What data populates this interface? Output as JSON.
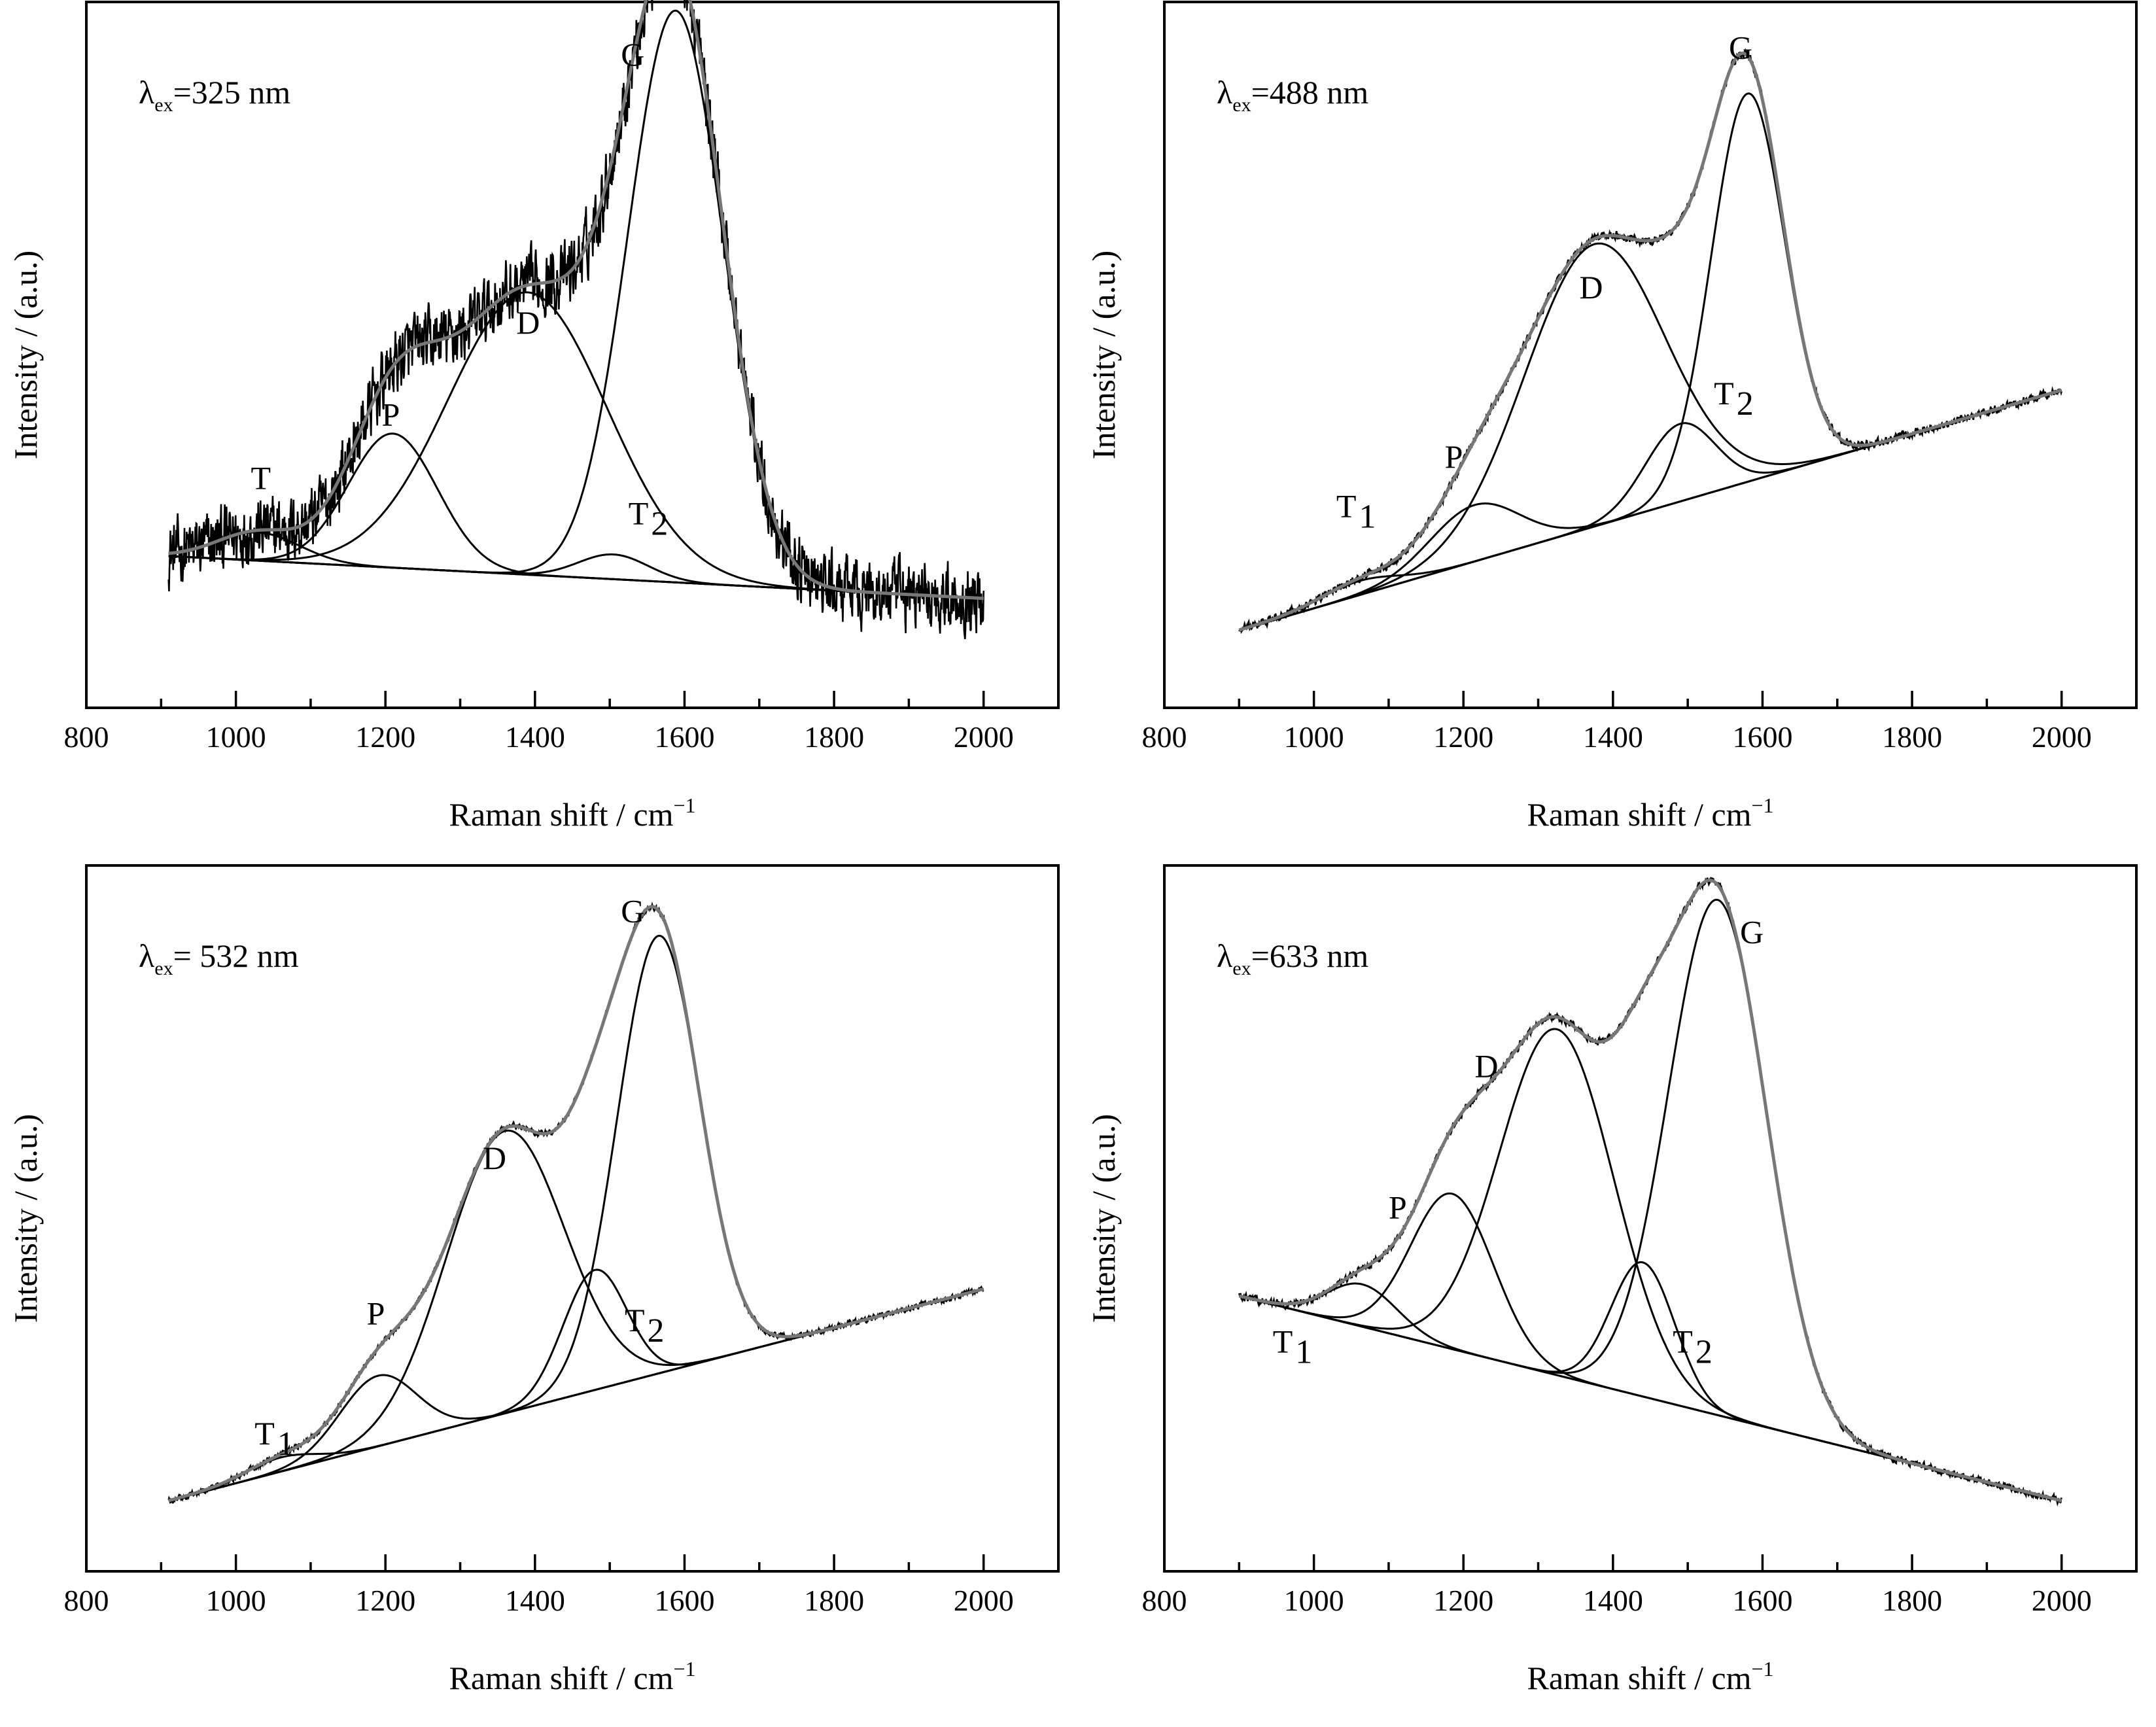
{
  "chart_data": [
    {
      "type": "line",
      "panel": "top-left",
      "title": "",
      "lambda": {
        "symbol": "λ",
        "sub": "ex",
        "text": "=325 nm"
      },
      "xlabel": "Raman shift / cm",
      "xlabel_sup": "−1",
      "ylabel": "Intensity / (a.u.)",
      "xlim": [
        800,
        2100
      ],
      "ylim": [
        0,
        1
      ],
      "x_ticks": [
        800,
        1000,
        1200,
        1400,
        1600,
        1800,
        2000
      ],
      "x_tick_labels": [
        "800",
        "1000",
        "1200",
        "1400",
        "1600",
        "1800",
        "2000"
      ],
      "x_range": [
        910,
        2000
      ],
      "noise": 0.07,
      "baseline": {
        "x": [
          910,
          2000
        ],
        "y": [
          0.215,
          0.155
        ]
      },
      "peaks": [
        {
          "name": "T",
          "label": "T",
          "sub": "",
          "center": 1030,
          "amplitude": 0.04,
          "fwhm": 130
        },
        {
          "name": "P",
          "label": "P",
          "sub": "",
          "center": 1210,
          "amplitude": 0.19,
          "fwhm": 140
        },
        {
          "name": "D",
          "label": "D",
          "sub": "",
          "center": 1390,
          "amplitude": 0.4,
          "fwhm": 250
        },
        {
          "name": "T2",
          "label": "T",
          "sub": "2",
          "center": 1505,
          "amplitude": 0.035,
          "fwhm": 110
        },
        {
          "name": "G",
          "label": "G",
          "sub": "",
          "center": 1588,
          "amplitude": 0.81,
          "fwhm": 150
        }
      ],
      "peak_label_positions": {
        "T": [
          1020,
          0.31
        ],
        "P": [
          1195,
          0.4
        ],
        "D": [
          1375,
          0.53
        ],
        "T2": [
          1525,
          0.26
        ],
        "G": [
          1515,
          0.91
        ]
      }
    },
    {
      "type": "line",
      "panel": "top-right",
      "title": "",
      "lambda": {
        "symbol": "λ",
        "sub": "ex",
        "text": "=488 nm"
      },
      "xlabel": "Raman shift / cm",
      "xlabel_sup": "−1",
      "ylabel": "Intensity / (a.u.)",
      "xlim": [
        800,
        2100
      ],
      "ylim": [
        0,
        1
      ],
      "x_ticks": [
        800,
        1000,
        1200,
        1400,
        1600,
        1800,
        2000
      ],
      "x_tick_labels": [
        "800",
        "1000",
        "1200",
        "1400",
        "1600",
        "1800",
        "2000"
      ],
      "x_range": [
        900,
        2000
      ],
      "noise": 0.009,
      "baseline": {
        "x": [
          900,
          2000
        ],
        "y": [
          0.11,
          0.45
        ]
      },
      "peaks": [
        {
          "name": "T1",
          "label": "T",
          "sub": "1",
          "center": 1060,
          "amplitude": 0.02,
          "fwhm": 120
        },
        {
          "name": "P",
          "label": "P",
          "sub": "",
          "center": 1215,
          "amplitude": 0.08,
          "fwhm": 140
        },
        {
          "name": "D",
          "label": "D",
          "sub": "",
          "center": 1375,
          "amplitude": 0.4,
          "fwhm": 220
        },
        {
          "name": "T2",
          "label": "T",
          "sub": "2",
          "center": 1490,
          "amplitude": 0.11,
          "fwhm": 110
        },
        {
          "name": "G",
          "label": "G",
          "sub": "",
          "center": 1580,
          "amplitude": 0.55,
          "fwhm": 115
        }
      ],
      "peak_label_positions": {
        "T1": [
          1030,
          0.27
        ],
        "P": [
          1175,
          0.34
        ],
        "D": [
          1355,
          0.58
        ],
        "T2": [
          1535,
          0.43
        ],
        "G": [
          1555,
          0.92
        ]
      }
    },
    {
      "type": "line",
      "panel": "bottom-left",
      "title": "",
      "lambda": {
        "symbol": "λ",
        "sub": "ex",
        "text": "= 532 nm"
      },
      "xlabel": "Raman shift / cm",
      "xlabel_sup": "−1",
      "ylabel": "Intensity / (a.u.)",
      "xlim": [
        800,
        2100
      ],
      "ylim": [
        0,
        1
      ],
      "x_ticks": [
        800,
        1000,
        1200,
        1400,
        1600,
        1800,
        2000
      ],
      "x_tick_labels": [
        "800",
        "1000",
        "1200",
        "1400",
        "1600",
        "1800",
        "2000"
      ],
      "x_range": [
        910,
        2000
      ],
      "noise": 0.006,
      "baseline": {
        "x": [
          910,
          2000
        ],
        "y": [
          0.1,
          0.4
        ]
      },
      "peaks": [
        {
          "name": "T1",
          "label": "T",
          "sub": "1",
          "center": 1060,
          "amplitude": 0.02,
          "fwhm": 110
        },
        {
          "name": "P",
          "label": "P",
          "sub": "",
          "center": 1190,
          "amplitude": 0.1,
          "fwhm": 120
        },
        {
          "name": "D",
          "label": "D",
          "sub": "",
          "center": 1360,
          "amplitude": 0.4,
          "fwhm": 185
        },
        {
          "name": "T2",
          "label": "T",
          "sub": "2",
          "center": 1480,
          "amplitude": 0.17,
          "fwhm": 100
        },
        {
          "name": "G",
          "label": "G",
          "sub": "",
          "center": 1565,
          "amplitude": 0.62,
          "fwhm": 130
        }
      ],
      "peak_label_positions": {
        "T1": [
          1025,
          0.18
        ],
        "P": [
          1175,
          0.35
        ],
        "D": [
          1330,
          0.57
        ],
        "T2": [
          1520,
          0.34
        ],
        "G": [
          1515,
          0.92
        ]
      }
    },
    {
      "type": "line",
      "panel": "bottom-right",
      "title": "",
      "lambda": {
        "symbol": "λ",
        "sub": "ex",
        "text": "=633 nm"
      },
      "xlabel": "Raman shift / cm",
      "xlabel_sup": "−1",
      "ylabel": "Intensity  / (a.u.)",
      "xlim": [
        800,
        2100
      ],
      "ylim": [
        0,
        1
      ],
      "x_ticks": [
        800,
        1000,
        1200,
        1400,
        1600,
        1800,
        2000
      ],
      "x_tick_labels": [
        "800",
        "1000",
        "1200",
        "1400",
        "1600",
        "1800",
        "2000"
      ],
      "x_range": [
        900,
        2000
      ],
      "noise": 0.008,
      "baseline": {
        "x": [
          900,
          2000
        ],
        "y": [
          0.39,
          0.1
        ]
      },
      "peaks": [
        {
          "name": "T1",
          "label": "T",
          "sub": "1",
          "center": 1065,
          "amplitude": 0.06,
          "fwhm": 110
        },
        {
          "name": "P",
          "label": "P",
          "sub": "",
          "center": 1185,
          "amplitude": 0.22,
          "fwhm": 130
        },
        {
          "name": "D",
          "label": "D",
          "sub": "",
          "center": 1325,
          "amplitude": 0.49,
          "fwhm": 180
        },
        {
          "name": "T2",
          "label": "T",
          "sub": "2",
          "center": 1440,
          "amplitude": 0.19,
          "fwhm": 100
        },
        {
          "name": "G",
          "label": "G",
          "sub": "",
          "center": 1540,
          "amplitude": 0.73,
          "fwhm": 155
        }
      ],
      "peak_label_positions": {
        "T1": [
          945,
          0.31
        ],
        "P": [
          1100,
          0.5
        ],
        "D": [
          1215,
          0.7
        ],
        "T2": [
          1480,
          0.31
        ],
        "G": [
          1570,
          0.89
        ]
      }
    }
  ]
}
